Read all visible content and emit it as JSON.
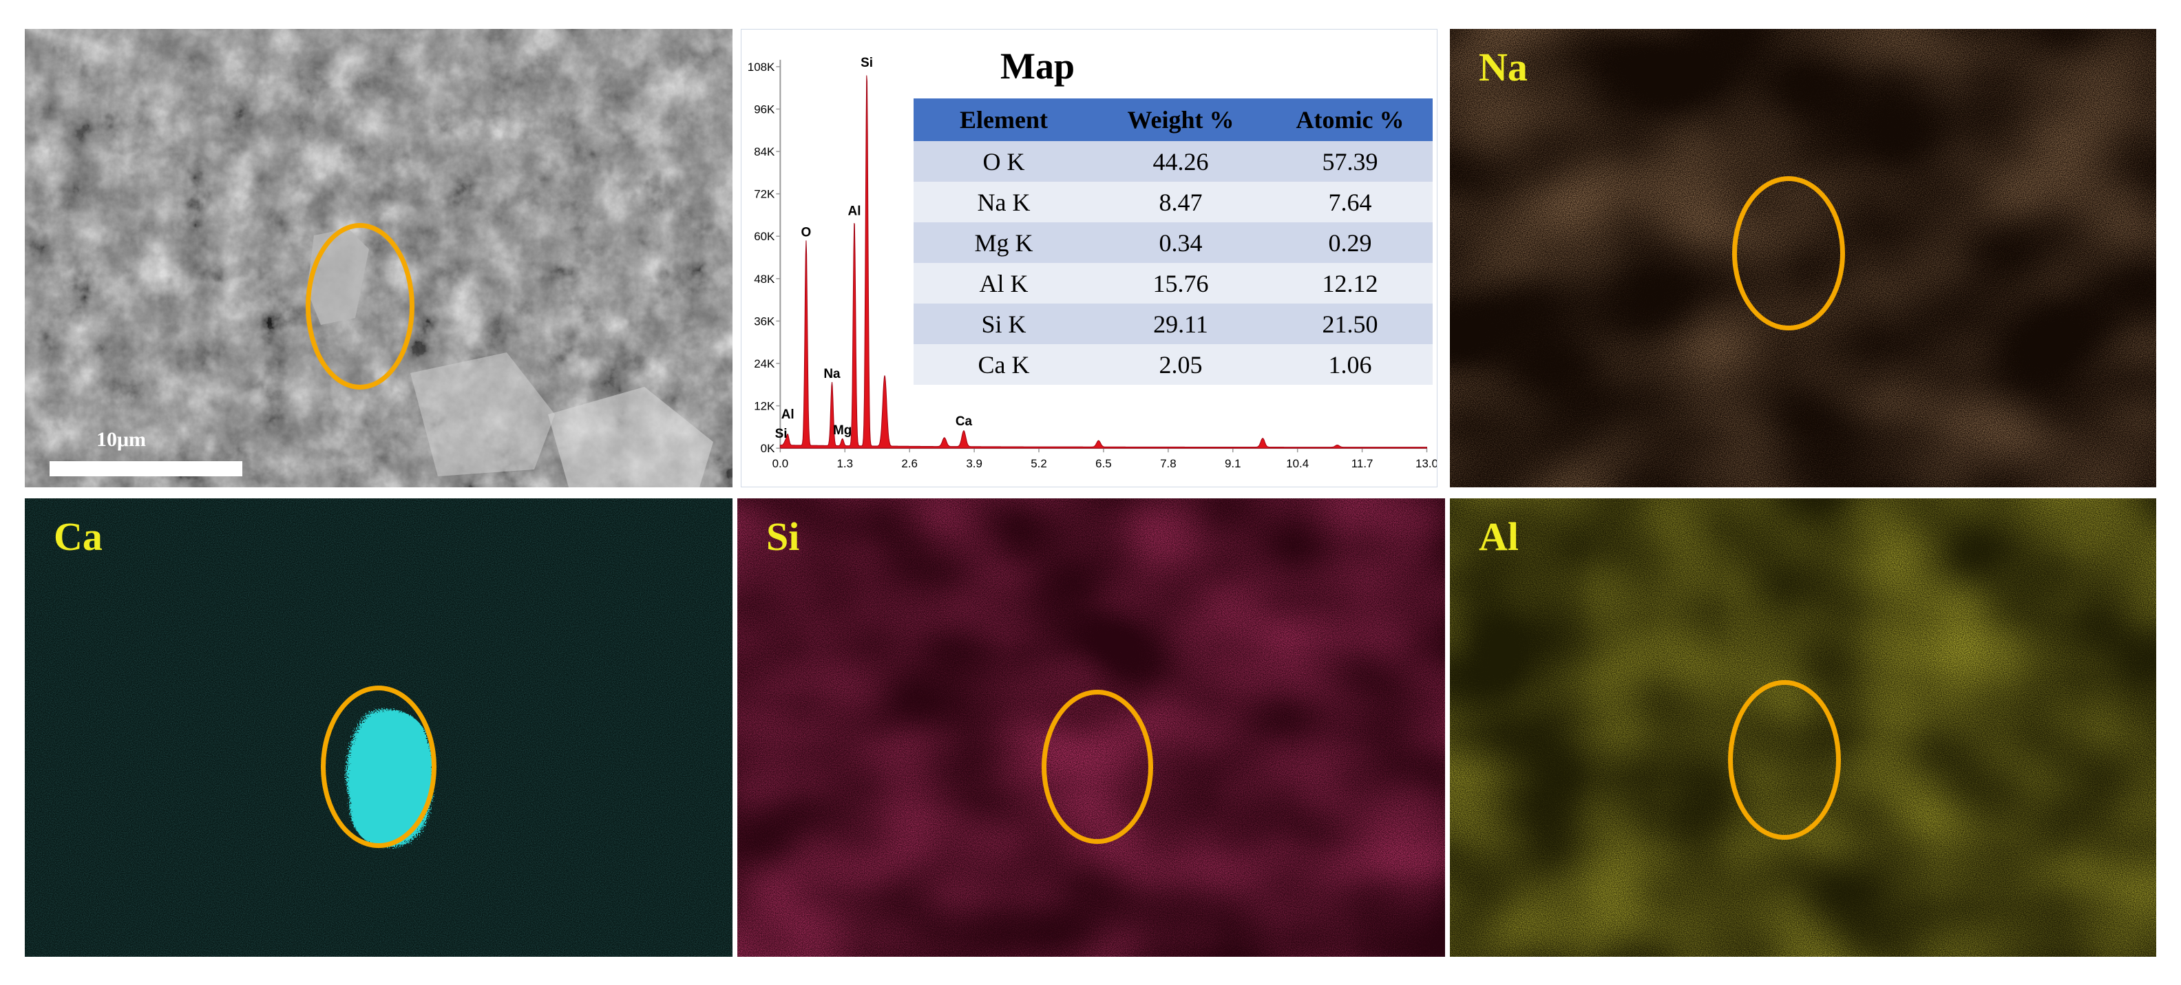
{
  "sem_panel": {
    "scale_label": "10μm"
  },
  "spectrum": {
    "title": "Map",
    "table": {
      "headers": [
        "Element",
        "Weight %",
        "Atomic %"
      ],
      "rows": [
        [
          "O  K",
          "44.26",
          "57.39"
        ],
        [
          "Na K",
          "8.47",
          "7.64"
        ],
        [
          "Mg K",
          "0.34",
          "0.29"
        ],
        [
          "Al K",
          "15.76",
          "12.12"
        ],
        [
          "Si K",
          "29.11",
          "21.50"
        ],
        [
          "Ca K",
          "2.05",
          "1.06"
        ]
      ]
    },
    "x_ticks": [
      "0.0",
      "1.3",
      "2.6",
      "3.9",
      "5.2",
      "6.5",
      "7.8",
      "9.1",
      "10.4",
      "11.7",
      "13.0"
    ],
    "y_ticks": [
      "0K",
      "12K",
      "24K",
      "36K",
      "48K",
      "60K",
      "72K",
      "84K",
      "96K",
      "108K"
    ],
    "peaks": [
      {
        "label": "Si",
        "energy": 0.1,
        "counts": 1000
      },
      {
        "label": "Al",
        "energy": 0.15,
        "counts": 3000
      },
      {
        "label": "O",
        "energy": 0.52,
        "counts": 58000
      },
      {
        "label": "Na",
        "energy": 1.04,
        "counts": 18000
      },
      {
        "label": "Mg",
        "energy": 1.25,
        "counts": 2000
      },
      {
        "label": "Al",
        "energy": 1.49,
        "counts": 64000
      },
      {
        "label": "Si",
        "energy": 1.74,
        "counts": 106000
      },
      {
        "label": "Ca",
        "energy": 3.69,
        "counts": 4500
      }
    ],
    "minor_peaks": [
      {
        "energy": 2.1,
        "counts": 20000
      },
      {
        "energy": 3.3,
        "counts": 2500
      },
      {
        "energy": 6.4,
        "counts": 1800
      },
      {
        "energy": 9.7,
        "counts": 2500
      },
      {
        "energy": 11.2,
        "counts": 600
      }
    ],
    "x_range": [
      0,
      13
    ],
    "y_range": [
      0,
      108000
    ],
    "fill_color": "#e0141c"
  },
  "element_maps": [
    {
      "id": "na",
      "label": "Na",
      "color": "#c8763a"
    },
    {
      "id": "ca",
      "label": "Ca",
      "color": "#2ed6d6"
    },
    {
      "id": "si",
      "label": "Si",
      "color": "#c8103a"
    },
    {
      "id": "al",
      "label": "Al",
      "color": "#c8c000"
    }
  ],
  "ring_color": "#f5a800",
  "label_color": "#f2ee22"
}
